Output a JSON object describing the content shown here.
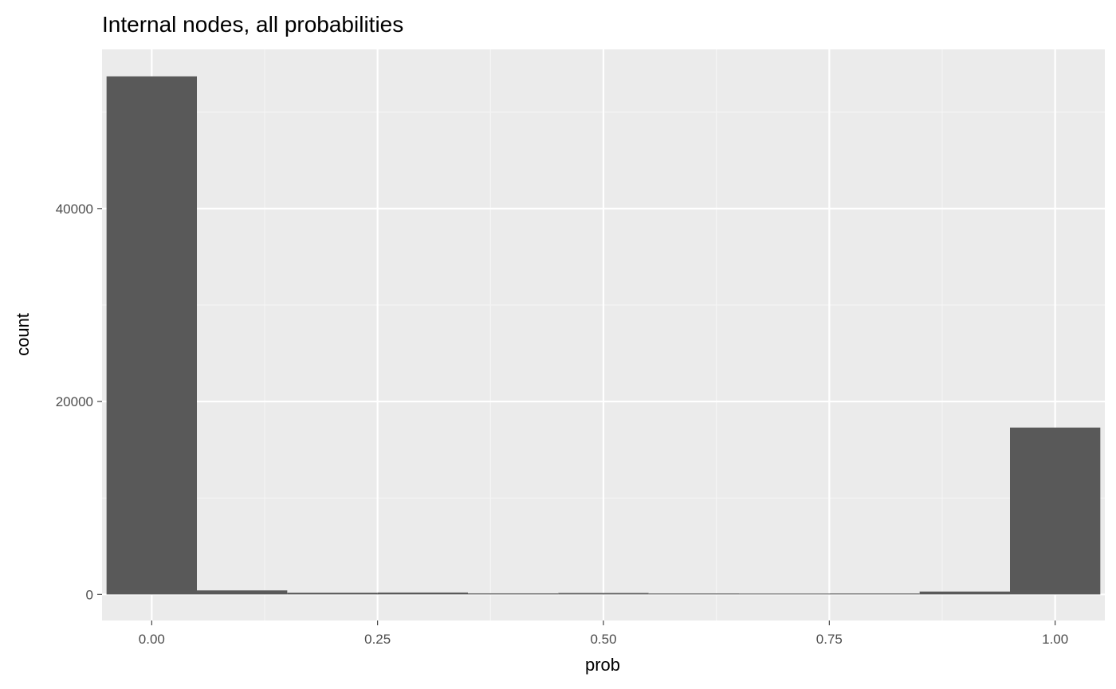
{
  "chart_data": {
    "type": "bar",
    "subtype": "histogram",
    "title": "Internal nodes, all probabilities",
    "xlabel": "prob",
    "ylabel": "count",
    "xlim": [
      -0.055,
      1.055
    ],
    "ylim": [
      -2700,
      56500
    ],
    "x_major_ticks": [
      0.0,
      0.25,
      0.5,
      0.75,
      1.0
    ],
    "x_tick_labels": [
      "0.00",
      "0.25",
      "0.50",
      "0.75",
      "1.00"
    ],
    "x_minor_ticks": [
      0.125,
      0.375,
      0.625,
      0.875
    ],
    "y_major_ticks": [
      0,
      20000,
      40000
    ],
    "y_tick_labels": [
      "0",
      "20000",
      "40000"
    ],
    "y_minor_ticks": [
      10000,
      30000,
      50000
    ],
    "bin_width": 0.1,
    "bins": [
      {
        "x0": -0.05,
        "x1": 0.05,
        "count": 53700
      },
      {
        "x0": 0.05,
        "x1": 0.15,
        "count": 420
      },
      {
        "x0": 0.15,
        "x1": 0.25,
        "count": 180
      },
      {
        "x0": 0.25,
        "x1": 0.35,
        "count": 200
      },
      {
        "x0": 0.35,
        "x1": 0.45,
        "count": 110
      },
      {
        "x0": 0.45,
        "x1": 0.55,
        "count": 150
      },
      {
        "x0": 0.55,
        "x1": 0.65,
        "count": 100
      },
      {
        "x0": 0.65,
        "x1": 0.75,
        "count": 90
      },
      {
        "x0": 0.75,
        "x1": 0.85,
        "count": 100
      },
      {
        "x0": 0.85,
        "x1": 0.95,
        "count": 300
      },
      {
        "x0": 0.95,
        "x1": 1.05,
        "count": 17300
      }
    ],
    "grid": true,
    "legend": "none",
    "colors": {
      "panel_background": "#ebebeb",
      "grid_major": "#ffffff",
      "grid_minor": "#f5f5f5",
      "bar_fill": "#595959",
      "tick_label": "#4d4d4d",
      "tick_mark": "#333333"
    }
  }
}
